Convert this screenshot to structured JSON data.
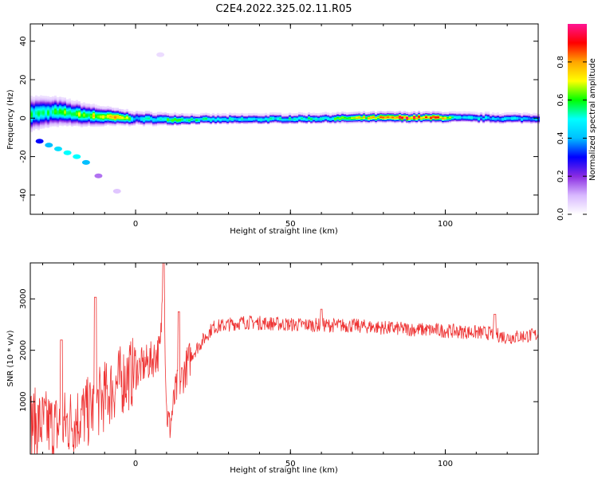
{
  "title": "C2E4.2022.325.02.11.R05",
  "chart_data": [
    {
      "type": "heatmap",
      "xlabel": "Height of straight line (km)",
      "ylabel": "Frequency (Hz)",
      "xlim": [
        -34,
        130
      ],
      "ylim": [
        -50,
        49
      ],
      "xticks": [
        0,
        50,
        100
      ],
      "yticks": [
        40,
        20,
        0,
        -20,
        -40
      ],
      "colorbar": {
        "label": "Normalized spectral amplitude",
        "range": [
          0.0,
          1.0
        ],
        "ticks": [
          "0.0",
          "0.2",
          "0.4",
          "0.6",
          "0.8"
        ],
        "colors": [
          "#ffffff",
          "#d8b8ff",
          "#8a2be2",
          "#0000ff",
          "#00bfff",
          "#00ffff",
          "#00ff00",
          "#ffff00",
          "#ffa500",
          "#ff0000",
          "#ff1493"
        ]
      },
      "main_band": {
        "center_hz": [
          [
            -34,
            3
          ],
          [
            -25,
            4
          ],
          [
            -15,
            2
          ],
          [
            -5,
            1
          ],
          [
            0,
            0.5
          ],
          [
            10,
            0
          ],
          [
            30,
            0
          ],
          [
            60,
            0.5
          ],
          [
            80,
            1
          ],
          [
            100,
            1
          ],
          [
            120,
            0.5
          ],
          [
            130,
            0.5
          ]
        ],
        "halfwidth_hz": [
          [
            -34,
            7
          ],
          [
            -20,
            5
          ],
          [
            -5,
            3
          ],
          [
            20,
            2
          ],
          [
            60,
            2
          ],
          [
            100,
            2
          ],
          [
            130,
            2
          ]
        ],
        "peak_amplitude": [
          [
            -34,
            0.55
          ],
          [
            -25,
            0.6
          ],
          [
            -10,
            0.75
          ],
          [
            -5,
            0.85
          ],
          [
            0,
            0.45
          ],
          [
            10,
            0.6
          ],
          [
            30,
            0.5
          ],
          [
            60,
            0.55
          ],
          [
            75,
            0.75
          ],
          [
            85,
            0.95
          ],
          [
            98,
            0.9
          ],
          [
            105,
            0.5
          ],
          [
            130,
            0.45
          ]
        ]
      },
      "side_blobs": [
        {
          "x": -31,
          "y": -12,
          "amp": 0.3
        },
        {
          "x": -28,
          "y": -14,
          "amp": 0.4
        },
        {
          "x": -25,
          "y": -16,
          "amp": 0.45
        },
        {
          "x": -22,
          "y": -18,
          "amp": 0.5
        },
        {
          "x": -19,
          "y": -20,
          "amp": 0.5
        },
        {
          "x": -16,
          "y": -23,
          "amp": 0.4
        },
        {
          "x": -12,
          "y": -30,
          "amp": 0.15
        },
        {
          "x": -6,
          "y": -38,
          "amp": 0.08
        },
        {
          "x": 8,
          "y": 33,
          "amp": 0.05
        }
      ]
    },
    {
      "type": "line",
      "xlabel": "Height of straight line (km)",
      "ylabel": "SNR (10 * v/v)",
      "xlim": [
        -34,
        130
      ],
      "ylim": [
        -20,
        3700
      ],
      "xticks": [
        0,
        50,
        100
      ],
      "yticks": [
        1000,
        2000,
        3000
      ],
      "series_color": "#ee3333",
      "trend": [
        [
          -34,
          600
        ],
        [
          -25,
          500
        ],
        [
          -15,
          800
        ],
        [
          -5,
          1400
        ],
        [
          5,
          1800
        ],
        [
          8,
          2000
        ],
        [
          9,
          3600
        ],
        [
          10,
          800
        ],
        [
          11,
          500
        ],
        [
          13,
          1200
        ],
        [
          18,
          1900
        ],
        [
          25,
          2450
        ],
        [
          35,
          2550
        ],
        [
          50,
          2500
        ],
        [
          70,
          2480
        ],
        [
          85,
          2420
        ],
        [
          100,
          2380
        ],
        [
          115,
          2330
        ],
        [
          120,
          2250
        ],
        [
          130,
          2300
        ]
      ],
      "spikes": [
        {
          "x": -13,
          "y": 3030
        },
        {
          "x": -24,
          "y": 2200
        },
        {
          "x": 9,
          "y": 3700
        },
        {
          "x": 14,
          "y": 2750
        },
        {
          "x": 60,
          "y": 2800
        },
        {
          "x": 116,
          "y": 2700
        }
      ]
    }
  ]
}
